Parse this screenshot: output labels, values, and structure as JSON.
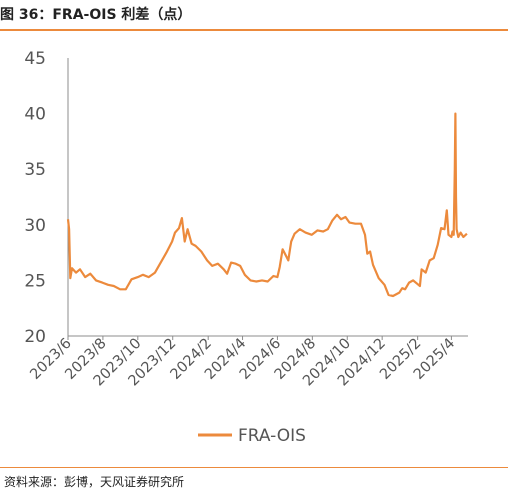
{
  "figure": {
    "title": "图 36：FRA-OIS 利差（点）",
    "source": "资料来源：彭博，天风证券研究所"
  },
  "colors": {
    "line": "#ec8a3c",
    "rule": "#ec8a3c",
    "axis": "#8c8c8c",
    "text": "#555555"
  },
  "chart_data": {
    "type": "line",
    "title": "",
    "xlabel": "",
    "ylabel": "",
    "ylim": [
      20,
      45
    ],
    "yticks": [
      20,
      25,
      30,
      35,
      40,
      45
    ],
    "xlim": [
      "2023-06-01",
      "2025-04-30"
    ],
    "xticks": [
      "2023/6",
      "2023/8",
      "2023/10",
      "2023/12",
      "2024/2",
      "2024/4",
      "2024/6",
      "2024/8",
      "2024/10",
      "2024/12",
      "2025/2",
      "2025/4"
    ],
    "grid": false,
    "legend": {
      "position": "bottom",
      "entries": [
        "FRA-OIS"
      ]
    },
    "series": [
      {
        "name": "FRA-OIS",
        "points": [
          [
            "2023-06-01",
            30.5
          ],
          [
            "2023-06-03",
            29.6
          ],
          [
            "2023-06-05",
            25.2
          ],
          [
            "2023-06-08",
            26.1
          ],
          [
            "2023-06-15",
            25.7
          ],
          [
            "2023-06-22",
            26.0
          ],
          [
            "2023-07-01",
            25.3
          ],
          [
            "2023-07-10",
            25.6
          ],
          [
            "2023-07-20",
            25.0
          ],
          [
            "2023-07-31",
            24.8
          ],
          [
            "2023-08-10",
            24.6
          ],
          [
            "2023-08-20",
            24.5
          ],
          [
            "2023-08-31",
            24.2
          ],
          [
            "2023-09-10",
            24.2
          ],
          [
            "2023-09-20",
            25.1
          ],
          [
            "2023-10-01",
            25.3
          ],
          [
            "2023-10-10",
            25.5
          ],
          [
            "2023-10-20",
            25.3
          ],
          [
            "2023-10-31",
            25.7
          ],
          [
            "2023-11-10",
            26.6
          ],
          [
            "2023-11-20",
            27.5
          ],
          [
            "2023-11-30",
            28.5
          ],
          [
            "2023-12-05",
            29.3
          ],
          [
            "2023-12-12",
            29.7
          ],
          [
            "2023-12-17",
            30.6
          ],
          [
            "2023-12-22",
            28.5
          ],
          [
            "2023-12-27",
            29.6
          ],
          [
            "2024-01-03",
            28.3
          ],
          [
            "2024-01-10",
            28.1
          ],
          [
            "2024-01-20",
            27.6
          ],
          [
            "2024-01-30",
            26.8
          ],
          [
            "2024-02-08",
            26.3
          ],
          [
            "2024-02-18",
            26.5
          ],
          [
            "2024-02-28",
            26.0
          ],
          [
            "2024-03-05",
            25.6
          ],
          [
            "2024-03-12",
            26.6
          ],
          [
            "2024-03-20",
            26.5
          ],
          [
            "2024-03-28",
            26.3
          ],
          [
            "2024-04-05",
            25.5
          ],
          [
            "2024-04-15",
            25.0
          ],
          [
            "2024-04-25",
            24.9
          ],
          [
            "2024-05-05",
            25.0
          ],
          [
            "2024-05-15",
            24.9
          ],
          [
            "2024-05-25",
            25.4
          ],
          [
            "2024-06-01",
            25.3
          ],
          [
            "2024-06-05",
            26.2
          ],
          [
            "2024-06-10",
            27.8
          ],
          [
            "2024-06-15",
            27.3
          ],
          [
            "2024-06-20",
            26.8
          ],
          [
            "2024-06-25",
            28.5
          ],
          [
            "2024-07-01",
            29.2
          ],
          [
            "2024-07-10",
            29.6
          ],
          [
            "2024-07-20",
            29.3
          ],
          [
            "2024-07-31",
            29.1
          ],
          [
            "2024-08-10",
            29.5
          ],
          [
            "2024-08-20",
            29.4
          ],
          [
            "2024-08-28",
            29.6
          ],
          [
            "2024-09-05",
            30.4
          ],
          [
            "2024-09-13",
            30.9
          ],
          [
            "2024-09-20",
            30.5
          ],
          [
            "2024-09-28",
            30.7
          ],
          [
            "2024-10-05",
            30.2
          ],
          [
            "2024-10-15",
            30.1
          ],
          [
            "2024-10-25",
            30.1
          ],
          [
            "2024-11-01",
            29.1
          ],
          [
            "2024-11-05",
            27.4
          ],
          [
            "2024-11-10",
            27.6
          ],
          [
            "2024-11-15",
            26.4
          ],
          [
            "2024-11-25",
            25.2
          ],
          [
            "2024-12-05",
            24.6
          ],
          [
            "2024-12-12",
            23.7
          ],
          [
            "2024-12-20",
            23.6
          ],
          [
            "2024-12-31",
            23.9
          ],
          [
            "2025-01-05",
            24.3
          ],
          [
            "2025-01-10",
            24.2
          ],
          [
            "2025-01-17",
            24.8
          ],
          [
            "2025-01-24",
            25.0
          ],
          [
            "2025-01-31",
            24.7
          ],
          [
            "2025-02-05",
            24.5
          ],
          [
            "2025-02-08",
            26.0
          ],
          [
            "2025-02-15",
            25.7
          ],
          [
            "2025-02-22",
            26.8
          ],
          [
            "2025-03-01",
            27.0
          ],
          [
            "2025-03-08",
            28.2
          ],
          [
            "2025-03-14",
            29.7
          ],
          [
            "2025-03-20",
            29.6
          ],
          [
            "2025-03-24",
            31.3
          ],
          [
            "2025-03-27",
            29.1
          ],
          [
            "2025-04-01",
            28.9
          ],
          [
            "2025-04-03",
            29.4
          ],
          [
            "2025-04-05",
            29.1
          ],
          [
            "2025-04-07",
            35.0
          ],
          [
            "2025-04-08",
            40.0
          ],
          [
            "2025-04-09",
            32.5
          ],
          [
            "2025-04-10",
            29.6
          ],
          [
            "2025-04-13",
            28.9
          ],
          [
            "2025-04-17",
            29.3
          ],
          [
            "2025-04-22",
            28.9
          ],
          [
            "2025-04-28",
            29.2
          ]
        ]
      }
    ]
  }
}
